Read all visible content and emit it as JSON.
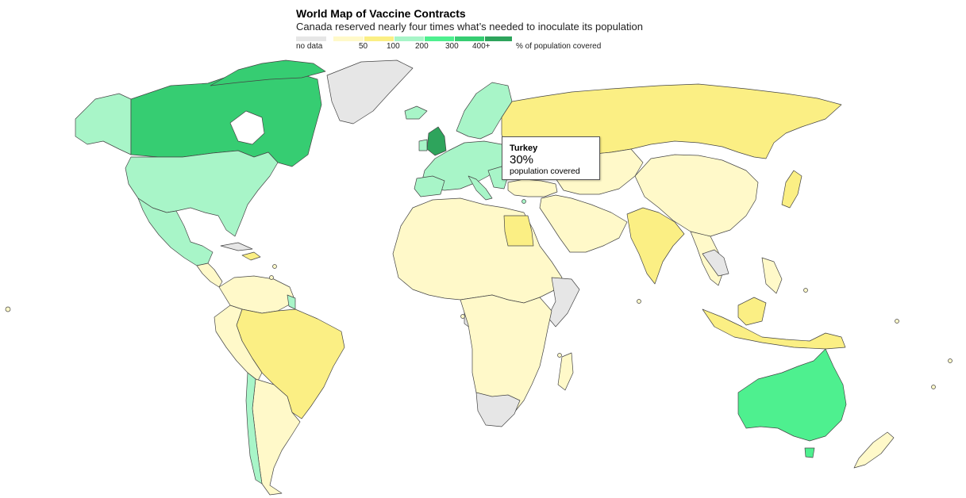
{
  "header": {
    "title": "World Map of Vaccine Contracts",
    "subtitle": "Canada reserved nearly four times what’s needed to inoculate its population"
  },
  "legend": {
    "no_data_label": "no data",
    "ticks": [
      "50",
      "100",
      "200",
      "300",
      "400+"
    ],
    "unit_label": "% of population covered",
    "colors": {
      "no_data": "#e6e6e6",
      "bin_0_50": "#fff9c9",
      "bin_50_100": "#fbef84",
      "bin_100_200": "#a8f5c8",
      "bin_200_300": "#4ef08f",
      "bin_300_400": "#36cd72",
      "bin_400_plus": "#2ea45c"
    }
  },
  "tooltip": {
    "country": "Turkey",
    "value": "30%",
    "label": "population covered"
  },
  "highlighted_country": "Turkey"
}
